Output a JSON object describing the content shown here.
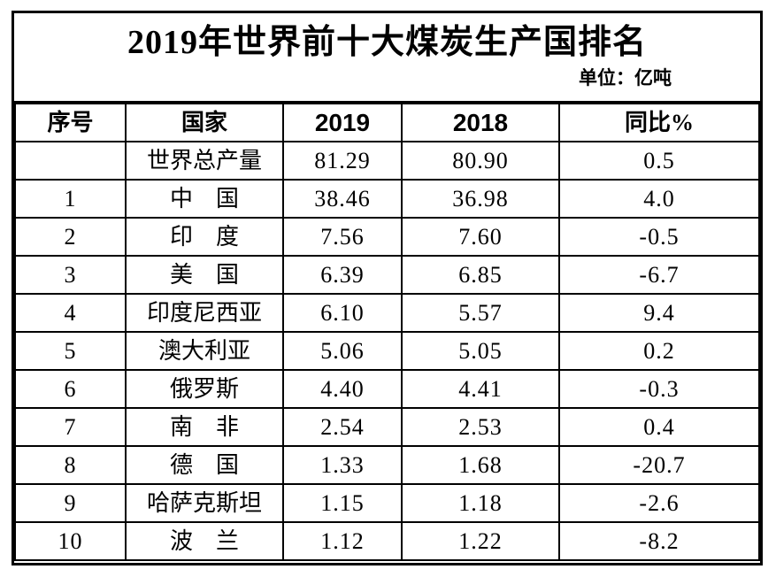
{
  "header": {
    "title": "2019年世界前十大煤炭生产国排名",
    "unit_label": "单位：亿吨"
  },
  "table": {
    "columns": [
      "序号",
      "国家",
      "2019",
      "2018",
      "同比%"
    ],
    "rows": [
      {
        "rank": "",
        "country": "世界总产量",
        "y2019": "81.29",
        "y2018": "80.90",
        "yoy": "0.5"
      },
      {
        "rank": "1",
        "country": "中　国",
        "y2019": "38.46",
        "y2018": "36.98",
        "yoy": "4.0"
      },
      {
        "rank": "2",
        "country": "印　度",
        "y2019": "7.56",
        "y2018": "7.60",
        "yoy": "-0.5"
      },
      {
        "rank": "3",
        "country": "美　国",
        "y2019": "6.39",
        "y2018": "6.85",
        "yoy": "-6.7"
      },
      {
        "rank": "4",
        "country": "印度尼西亚",
        "y2019": "6.10",
        "y2018": "5.57",
        "yoy": "9.4"
      },
      {
        "rank": "5",
        "country": "澳大利亚",
        "y2019": "5.06",
        "y2018": "5.05",
        "yoy": "0.2"
      },
      {
        "rank": "6",
        "country": "俄罗斯",
        "y2019": "4.40",
        "y2018": "4.41",
        "yoy": "-0.3"
      },
      {
        "rank": "7",
        "country": "南　非",
        "y2019": "2.54",
        "y2018": "2.53",
        "yoy": "0.4"
      },
      {
        "rank": "8",
        "country": "德　国",
        "y2019": "1.33",
        "y2018": "1.68",
        "yoy": "-20.7"
      },
      {
        "rank": "9",
        "country": "哈萨克斯坦",
        "y2019": "1.15",
        "y2018": "1.18",
        "yoy": "-2.6"
      },
      {
        "rank": "10",
        "country": "波　兰",
        "y2019": "1.12",
        "y2018": "1.22",
        "yoy": "-8.2"
      }
    ]
  },
  "chart_data": {
    "type": "table",
    "title": "2019年世界前十大煤炭生产国排名",
    "unit": "亿吨",
    "columns": [
      "序号",
      "国家",
      "2019",
      "2018",
      "同比%"
    ],
    "rows": [
      [
        "",
        "世界总产量",
        81.29,
        80.9,
        0.5
      ],
      [
        "1",
        "中国",
        38.46,
        36.98,
        4.0
      ],
      [
        "2",
        "印度",
        7.56,
        7.6,
        -0.5
      ],
      [
        "3",
        "美国",
        6.39,
        6.85,
        -6.7
      ],
      [
        "4",
        "印度尼西亚",
        6.1,
        5.57,
        9.4
      ],
      [
        "5",
        "澳大利亚",
        5.06,
        5.05,
        0.2
      ],
      [
        "6",
        "俄罗斯",
        4.4,
        4.41,
        -0.3
      ],
      [
        "7",
        "南非",
        2.54,
        2.53,
        0.4
      ],
      [
        "8",
        "德国",
        1.33,
        1.68,
        -20.7
      ],
      [
        "9",
        "哈萨克斯坦",
        1.15,
        1.18,
        -2.6
      ],
      [
        "10",
        "波兰",
        1.12,
        1.22,
        -8.2
      ]
    ]
  },
  "colors": {
    "border": "#000000",
    "text": "#000000",
    "background": "#ffffff"
  }
}
